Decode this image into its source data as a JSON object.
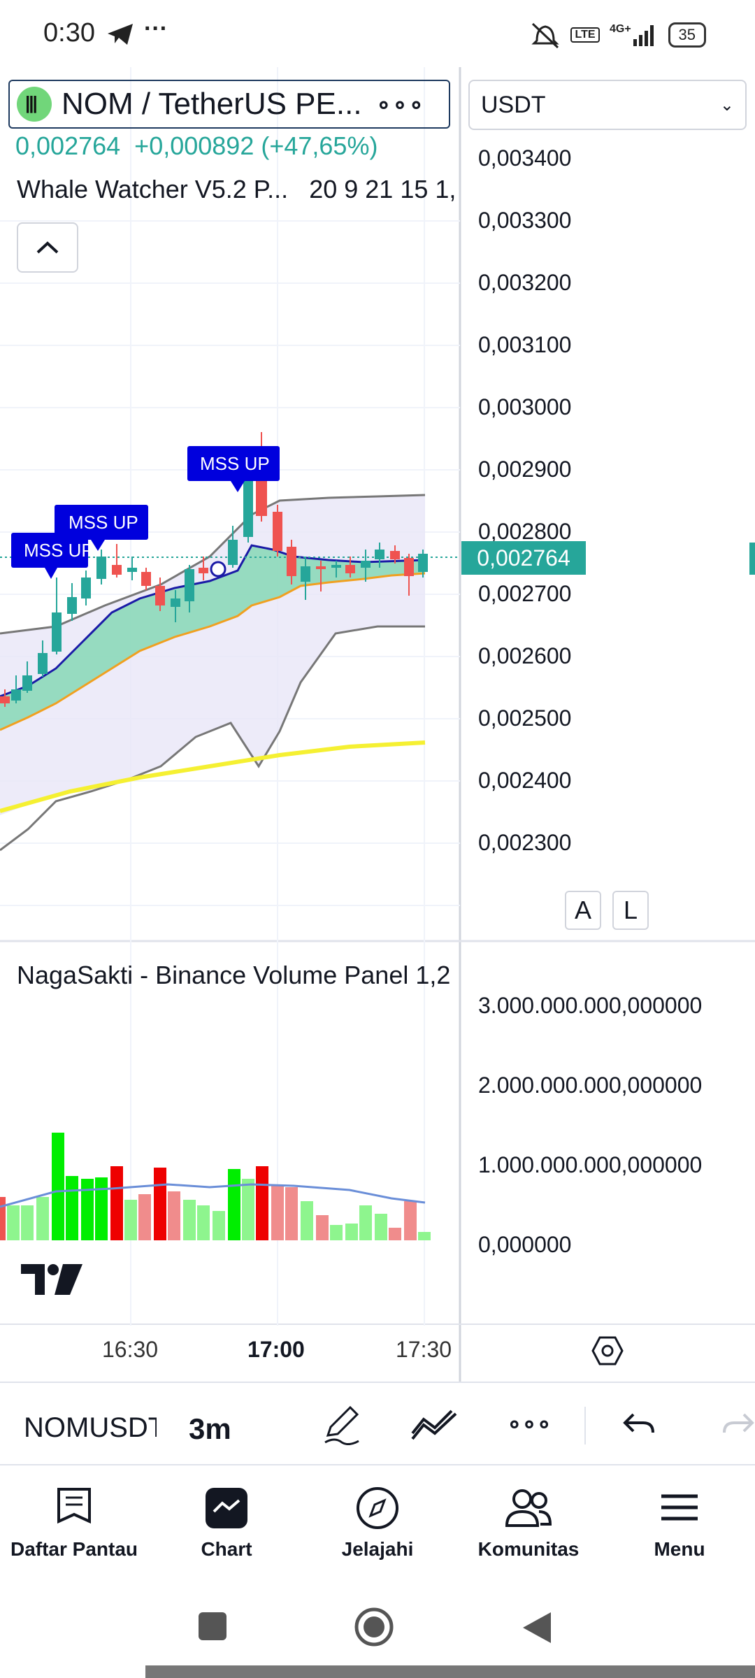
{
  "status_bar": {
    "time": "0:30",
    "icons": [
      "telegram-icon",
      "more-dots-icon",
      "mute-icon",
      "volte-icon",
      "4g-signal-icon"
    ],
    "battery": "35"
  },
  "header": {
    "symbol_name": "NOM / TetherUS PE...",
    "currency": "USDT",
    "last_price": "0,002764",
    "change": "+0,000892 (+47,65%)",
    "indicator": "Whale Watcher V5.2 P...",
    "indicator_params": "20 9 21 15 1,"
  },
  "price_axis": {
    "labels": [
      "0,003400",
      "0,003300",
      "0,003200",
      "0,003100",
      "0,003000",
      "0,002900",
      "0,002800",
      "0,002700",
      "0,002600",
      "0,002500",
      "0,002400",
      "0,002300"
    ],
    "current": "0,002764",
    "btn_a": "A",
    "btn_l": "L"
  },
  "annotations": [
    "MSS UP",
    "MSS UP",
    "MSS UP"
  ],
  "volume_panel": {
    "title": "NagaSakti - Binance Volume Panel 1,2",
    "labels": [
      "3.000.000.000,000000",
      "2.000.000.000,000000",
      "1.000.000.000,000000",
      "0,000000"
    ]
  },
  "time_axis": {
    "labels": [
      "16:30",
      "17:00",
      "17:30"
    ]
  },
  "toolbar": {
    "symbol": "NOMUSDT",
    "interval": "3m"
  },
  "nav": [
    {
      "label": "Daftar Pantau",
      "icon": "watchlist-icon"
    },
    {
      "label": "Chart",
      "icon": "chart-icon"
    },
    {
      "label": "Jelajahi",
      "icon": "compass-icon"
    },
    {
      "label": "Komunitas",
      "icon": "community-icon"
    },
    {
      "label": "Menu",
      "icon": "menu-icon"
    }
  ],
  "colors": {
    "up": "#26a69a",
    "down": "#ef5350",
    "brand": "#131722",
    "label_bg": "#0000dd"
  }
}
